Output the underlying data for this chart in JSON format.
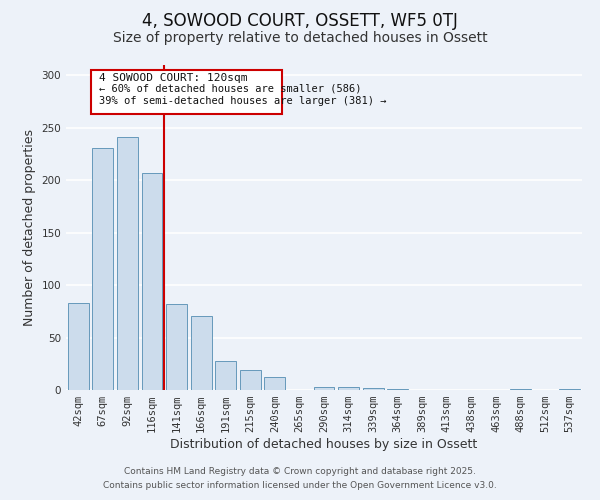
{
  "title": "4, SOWOOD COURT, OSSETT, WF5 0TJ",
  "subtitle": "Size of property relative to detached houses in Ossett",
  "xlabel": "Distribution of detached houses by size in Ossett",
  "ylabel": "Number of detached properties",
  "categories": [
    "42sqm",
    "67sqm",
    "92sqm",
    "116sqm",
    "141sqm",
    "166sqm",
    "191sqm",
    "215sqm",
    "240sqm",
    "265sqm",
    "290sqm",
    "314sqm",
    "339sqm",
    "364sqm",
    "389sqm",
    "413sqm",
    "438sqm",
    "463sqm",
    "488sqm",
    "512sqm",
    "537sqm"
  ],
  "values": [
    83,
    231,
    241,
    207,
    82,
    71,
    28,
    19,
    12,
    0,
    3,
    3,
    2,
    1,
    0,
    0,
    0,
    0,
    1,
    0,
    1
  ],
  "bar_color": "#ccdcec",
  "bar_edge_color": "#6699bb",
  "vline_color": "#cc0000",
  "ylim": [
    0,
    310
  ],
  "yticks": [
    0,
    50,
    100,
    150,
    200,
    250,
    300
  ],
  "annotation_title": "4 SOWOOD COURT: 120sqm",
  "annotation_line1": "← 60% of detached houses are smaller (586)",
  "annotation_line2": "39% of semi-detached houses are larger (381) →",
  "annotation_box_color": "#ffffff",
  "annotation_box_edge": "#cc0000",
  "footer1": "Contains HM Land Registry data © Crown copyright and database right 2025.",
  "footer2": "Contains public sector information licensed under the Open Government Licence v3.0.",
  "background_color": "#edf2f9",
  "grid_color": "#ffffff",
  "title_fontsize": 12,
  "subtitle_fontsize": 10,
  "axis_label_fontsize": 9,
  "tick_fontsize": 7.5,
  "footer_fontsize": 6.5,
  "annot_title_fontsize": 8,
  "annot_text_fontsize": 7.5
}
